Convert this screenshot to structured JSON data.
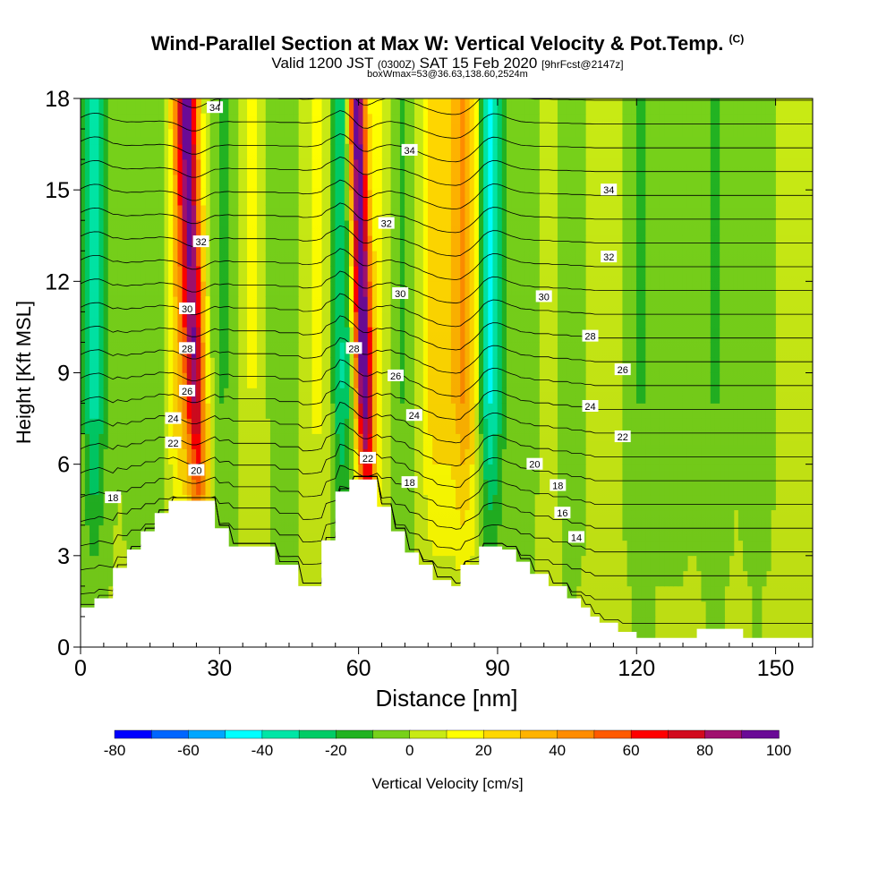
{
  "title": {
    "main": "Wind-Parallel Section at Max W: Vertical Velocity & Pot.Temp.",
    "copyright": "(C)",
    "sub_valid": "Valid 1200 JST",
    "sub_zulu": "(0300Z)",
    "sub_date": "SAT 15 Feb 2020",
    "sub_fcst": "[9hrFcst@2147z]",
    "box": "boxWmax=53@36.63,138.60,2524m"
  },
  "colors": {
    "palette": [
      "#0000ff",
      "#0066ff",
      "#00a6ff",
      "#00ffff",
      "#00e6a6",
      "#00cc66",
      "#22b322",
      "#77d11a",
      "#c8ea14",
      "#ffff00",
      "#ffd700",
      "#ffb300",
      "#ff8c00",
      "#ff5a00",
      "#ff0000",
      "#d20a1e",
      "#a0106e",
      "#6a0a96"
    ],
    "terrain": "#ffffff",
    "contour": "#000000"
  },
  "chart_data": {
    "type": "heatmap",
    "title": "Wind-Parallel Section at Max W: Vertical Velocity & Pot.Temp.",
    "xlabel": "Distance [nm]",
    "ylabel": "Height [Kft MSL]",
    "xlim": [
      0,
      158
    ],
    "ylim": [
      0,
      18
    ],
    "x_ticks": [
      0,
      30,
      60,
      90,
      120,
      150
    ],
    "y_ticks": [
      0,
      3,
      6,
      9,
      12,
      15,
      18
    ],
    "colorbar": {
      "label": "Vertical Velocity [cm/s]",
      "levels": [
        -80,
        -70,
        -60,
        -50,
        -40,
        -30,
        -20,
        -10,
        0,
        10,
        20,
        30,
        40,
        50,
        60,
        70,
        80,
        90,
        100
      ],
      "tick_labels": [
        "-80",
        "-60",
        "-40",
        "-20",
        "0",
        "20",
        "40",
        "60",
        "80",
        "100"
      ]
    },
    "terrain_profile": {
      "x": [
        0,
        3,
        7,
        10,
        13,
        16,
        19,
        26,
        29,
        32,
        40,
        42,
        47,
        49,
        52,
        55,
        58,
        61,
        64,
        67,
        70,
        73,
        76,
        80,
        82,
        86,
        91,
        94,
        97,
        101,
        105,
        108,
        110,
        112,
        116,
        120,
        133,
        143,
        158
      ],
      "y": [
        1.3,
        1.6,
        2.6,
        3.2,
        3.8,
        4.4,
        4.8,
        4.8,
        3.9,
        3.3,
        3.3,
        2.7,
        2.0,
        2.0,
        3.5,
        5.1,
        5.5,
        5.5,
        4.6,
        3.8,
        3.1,
        2.7,
        2.2,
        2.0,
        2.7,
        3.3,
        3.2,
        2.8,
        2.4,
        2.0,
        1.6,
        1.3,
        1.0,
        0.8,
        0.5,
        0.3,
        0.6,
        0.3,
        0.3
      ]
    },
    "w_columns": [
      {
        "x": 3,
        "w": -38,
        "width": 2.5
      },
      {
        "x": 14,
        "w": -10,
        "width": 4
      },
      {
        "x": 21,
        "w": 25,
        "width": 2
      },
      {
        "x": 24.5,
        "w": 88,
        "width": 2.3
      },
      {
        "x": 31,
        "w": -12,
        "width": 3
      },
      {
        "x": 37,
        "w": 10,
        "width": 3
      },
      {
        "x": 44,
        "w": -8,
        "width": 4
      },
      {
        "x": 51,
        "w": 12,
        "width": 3
      },
      {
        "x": 56.5,
        "w": -32,
        "width": 2.3
      },
      {
        "x": 61,
        "w": 100,
        "width": 2
      },
      {
        "x": 64,
        "w": 10,
        "width": 2
      },
      {
        "x": 70,
        "w": -12,
        "width": 3
      },
      {
        "x": 77,
        "w": 28,
        "width": 3.5
      },
      {
        "x": 83,
        "w": 40,
        "width": 3
      },
      {
        "x": 88.5,
        "w": -45,
        "width": 2.5
      },
      {
        "x": 95,
        "w": -10,
        "width": 3.5
      },
      {
        "x": 101,
        "w": 4,
        "width": 3
      },
      {
        "x": 106,
        "w": -8,
        "width": 3
      },
      {
        "x": 113,
        "w": 5,
        "width": 3
      },
      {
        "x": 121,
        "w": -12,
        "width": 3
      },
      {
        "x": 128,
        "w": -6,
        "width": 4
      },
      {
        "x": 137,
        "w": -12,
        "width": 3
      },
      {
        "x": 146,
        "w": -8,
        "width": 3
      }
    ],
    "theta_contours": {
      "levels_k": [
        13,
        14,
        15,
        16,
        17,
        18,
        19,
        20,
        21,
        22,
        23,
        24,
        25,
        26,
        27,
        28,
        29,
        30,
        31,
        32,
        33,
        34,
        35
      ],
      "labels": [
        {
          "text": "34",
          "x": 29,
          "y": 17.7
        },
        {
          "text": "34",
          "x": 71,
          "y": 16.3
        },
        {
          "text": "34",
          "x": 114,
          "y": 15.0
        },
        {
          "text": "32",
          "x": 26,
          "y": 13.3
        },
        {
          "text": "32",
          "x": 66,
          "y": 13.9
        },
        {
          "text": "32",
          "x": 114,
          "y": 12.8
        },
        {
          "text": "30",
          "x": 23,
          "y": 11.1
        },
        {
          "text": "30",
          "x": 69,
          "y": 11.6
        },
        {
          "text": "30",
          "x": 100,
          "y": 11.5
        },
        {
          "text": "28",
          "x": 23,
          "y": 9.8
        },
        {
          "text": "28",
          "x": 59,
          "y": 9.8
        },
        {
          "text": "28",
          "x": 110,
          "y": 10.2
        },
        {
          "text": "26",
          "x": 23,
          "y": 8.4
        },
        {
          "text": "26",
          "x": 68,
          "y": 8.9
        },
        {
          "text": "26",
          "x": 117,
          "y": 9.1
        },
        {
          "text": "24",
          "x": 20,
          "y": 7.5
        },
        {
          "text": "24",
          "x": 72,
          "y": 7.6
        },
        {
          "text": "24",
          "x": 110,
          "y": 7.9
        },
        {
          "text": "22",
          "x": 20,
          "y": 6.7
        },
        {
          "text": "22",
          "x": 62,
          "y": 6.2
        },
        {
          "text": "22",
          "x": 117,
          "y": 6.9
        },
        {
          "text": "20",
          "x": 25,
          "y": 5.8
        },
        {
          "text": "20",
          "x": 98,
          "y": 6.0
        },
        {
          "text": "18",
          "x": 7,
          "y": 4.9
        },
        {
          "text": "18",
          "x": 71,
          "y": 5.4
        },
        {
          "text": "18",
          "x": 103,
          "y": 5.3
        },
        {
          "text": "16",
          "x": 104,
          "y": 4.4
        },
        {
          "text": "14",
          "x": 107,
          "y": 3.6
        }
      ]
    }
  }
}
